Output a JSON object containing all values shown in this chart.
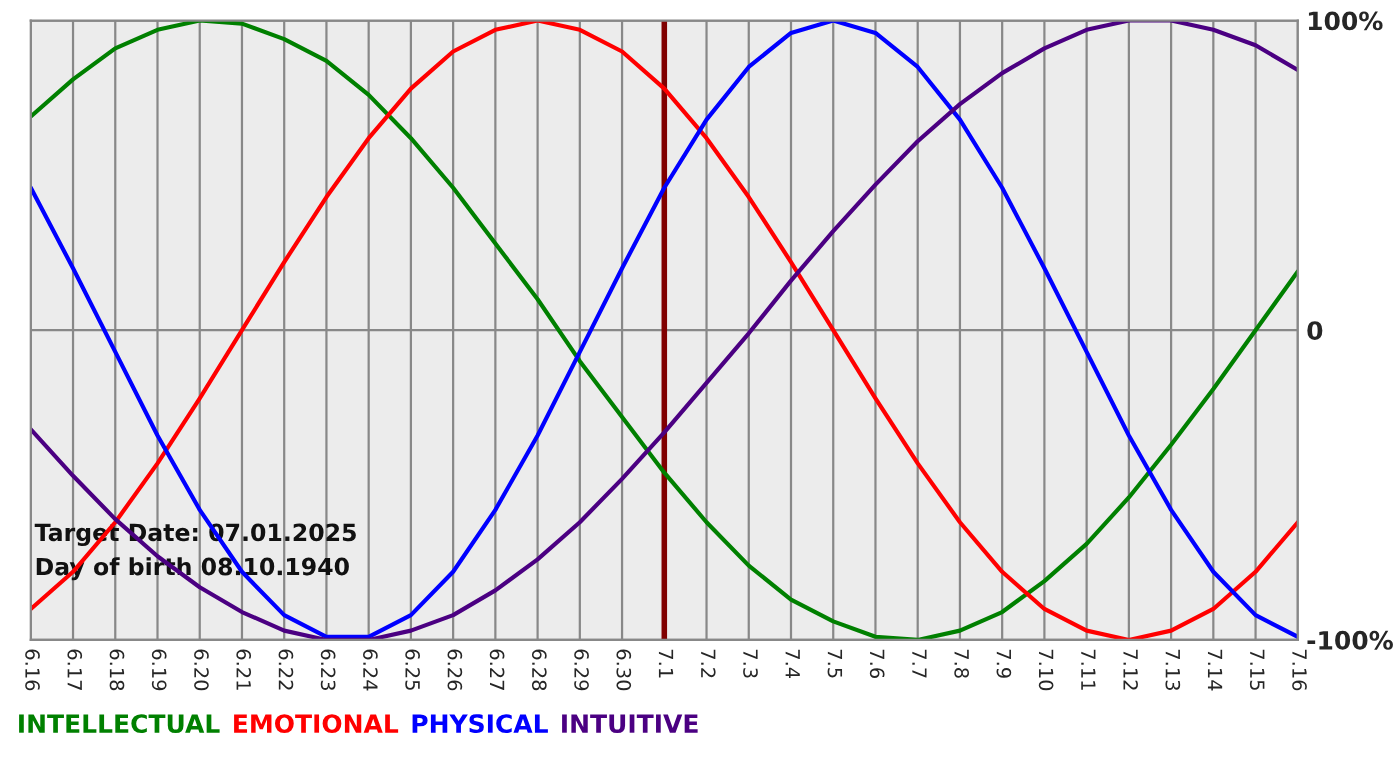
{
  "chart_data": {
    "type": "line",
    "categories": [
      "6.16",
      "6.17",
      "6.18",
      "6.19",
      "6.20",
      "6.21",
      "6.22",
      "6.23",
      "6.24",
      "6.25",
      "6.26",
      "6.27",
      "6.28",
      "6.29",
      "6.30",
      "7.1",
      "7.2",
      "7.3",
      "7.4",
      "7.5",
      "7.6",
      "7.7",
      "7.8",
      "7.9",
      "7.10",
      "7.11",
      "7.12",
      "7.13",
      "7.14",
      "7.15",
      "7.16"
    ],
    "series": [
      {
        "name": "INTELLECTUAL",
        "color": "#008000",
        "values": [
          69,
          81,
          91,
          97,
          100,
          99,
          94,
          87,
          76,
          62,
          46,
          28,
          10,
          -10,
          -28,
          -46,
          -62,
          -76,
          -87,
          -94,
          -99,
          -100,
          -97,
          -91,
          -81,
          -69,
          -54,
          -37,
          -19,
          0,
          19
        ]
      },
      {
        "name": "EMOTIONAL",
        "color": "#ff0000",
        "values": [
          -90,
          -78,
          -62,
          -43,
          -22,
          0,
          22,
          43,
          62,
          78,
          90,
          97,
          100,
          97,
          90,
          78,
          62,
          43,
          22,
          0,
          -22,
          -43,
          -62,
          -78,
          -90,
          -97,
          -100,
          -97,
          -90,
          -78,
          -62
        ]
      },
      {
        "name": "PHYSICAL",
        "color": "#0000ff",
        "values": [
          46,
          20,
          -7,
          -34,
          -58,
          -78,
          -92,
          -99,
          -99,
          -92,
          -78,
          -58,
          -34,
          -7,
          20,
          46,
          68,
          85,
          96,
          100,
          96,
          85,
          68,
          46,
          20,
          -7,
          -34,
          -58,
          -78,
          -92,
          -99
        ]
      },
      {
        "name": "INTUITIVE",
        "color": "#4b0082",
        "values": [
          -32,
          -47,
          -61,
          -73,
          -83,
          -91,
          -97,
          -100,
          -100,
          -97,
          -92,
          -84,
          -74,
          -62,
          -48,
          -33,
          -17,
          -1,
          16,
          32,
          47,
          61,
          73,
          83,
          91,
          97,
          100,
          100,
          97,
          92,
          84
        ]
      }
    ],
    "ylim": [
      -100,
      100
    ],
    "yticks": [
      {
        "value": 100,
        "label": "100%"
      },
      0,
      {
        "value": -100,
        "label": "-100%"
      }
    ],
    "ref_lines": [
      {
        "axis": "x",
        "value": "7.1",
        "color": "#800000"
      }
    ],
    "annotations": [
      "Target Date: 07.01.2025",
      "Day of birth 08.10.1940"
    ],
    "grid": true,
    "legend": "bottom left"
  }
}
